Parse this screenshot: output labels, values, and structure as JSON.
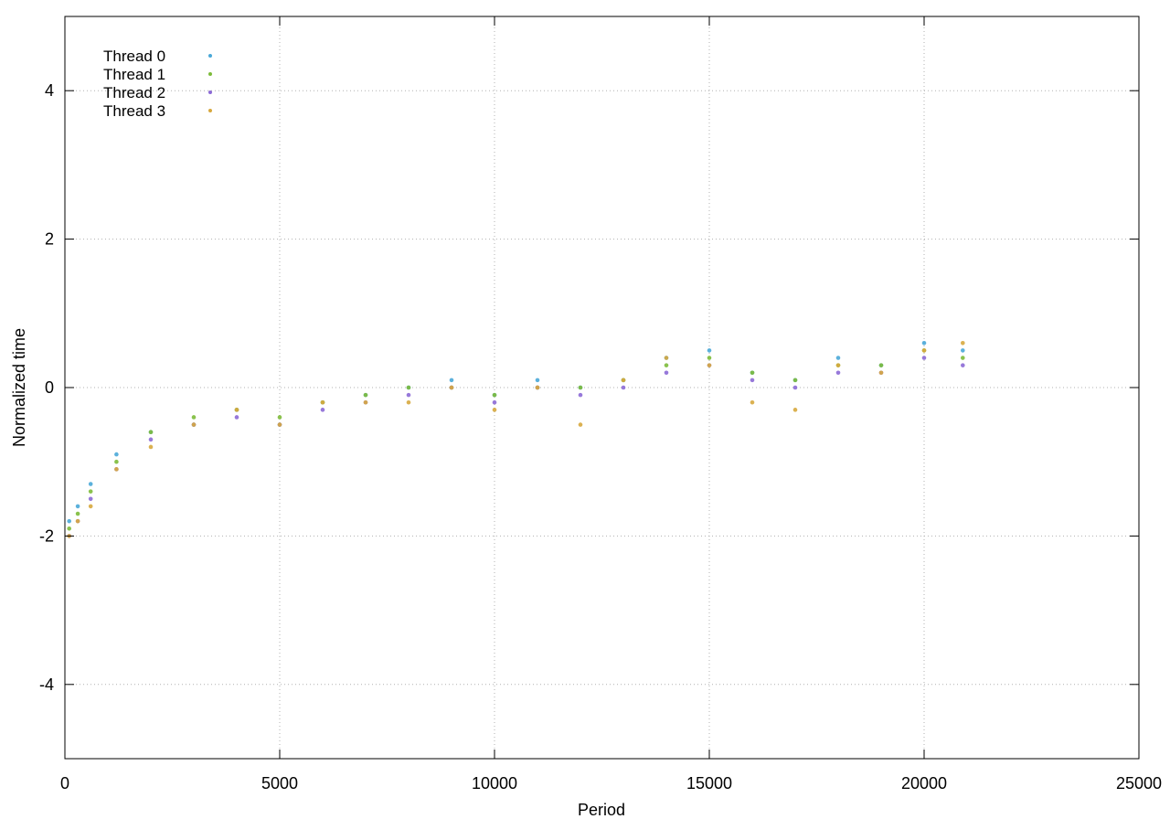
{
  "chart_data": {
    "type": "scatter",
    "title": "",
    "xlabel": "Period",
    "ylabel": "Normalized time",
    "xlim": [
      0,
      25000
    ],
    "ylim": [
      -5,
      5
    ],
    "x_ticks": [
      0,
      5000,
      10000,
      15000,
      20000,
      25000
    ],
    "y_ticks": [
      -4,
      -2,
      0,
      2,
      4
    ],
    "x_tick_labels": [
      "0",
      "5000",
      "10000",
      "15000",
      "20000",
      "25000"
    ],
    "y_tick_labels": [
      "-4",
      "-2",
      "0",
      "2",
      "4"
    ],
    "grid": true,
    "legend_position": "top-left",
    "series": [
      {
        "name": "Thread 0",
        "color": "#4aa8d8",
        "x": [
          100,
          300,
          600,
          1200,
          2000,
          3000,
          4000,
          5000,
          6000,
          7000,
          8000,
          9000,
          10000,
          11000,
          12000,
          13000,
          14000,
          15000,
          16000,
          17000,
          18000,
          19000,
          20000,
          20900
        ],
        "y": [
          -1.8,
          -1.6,
          -1.3,
          -0.9,
          -0.6,
          -0.5,
          -0.3,
          -0.5,
          -0.2,
          -0.1,
          0.0,
          0.1,
          -0.1,
          0.1,
          0.0,
          0.1,
          0.4,
          0.5,
          0.2,
          0.1,
          0.4,
          0.3,
          0.6,
          0.5
        ]
      },
      {
        "name": "Thread 1",
        "color": "#7dbb3a",
        "x": [
          100,
          300,
          600,
          1200,
          2000,
          3000,
          4000,
          5000,
          6000,
          7000,
          8000,
          9000,
          10000,
          11000,
          12000,
          13000,
          14000,
          15000,
          16000,
          17000,
          18000,
          19000,
          20000,
          20900
        ],
        "y": [
          -1.9,
          -1.7,
          -1.4,
          -1.0,
          -0.6,
          -0.4,
          -0.3,
          -0.4,
          -0.2,
          -0.1,
          0.0,
          0.0,
          -0.1,
          0.0,
          0.0,
          0.1,
          0.3,
          0.4,
          0.2,
          0.1,
          0.3,
          0.3,
          0.5,
          0.4
        ]
      },
      {
        "name": "Thread 2",
        "color": "#8c6ad6",
        "x": [
          100,
          300,
          600,
          1200,
          2000,
          3000,
          4000,
          5000,
          6000,
          7000,
          8000,
          9000,
          10000,
          11000,
          12000,
          13000,
          14000,
          15000,
          16000,
          17000,
          18000,
          19000,
          20000,
          20900
        ],
        "y": [
          -2.0,
          -1.8,
          -1.5,
          -1.1,
          -0.7,
          -0.5,
          -0.4,
          -0.5,
          -0.3,
          -0.2,
          -0.1,
          0.0,
          -0.2,
          0.0,
          -0.1,
          0.0,
          0.2,
          0.3,
          0.1,
          0.0,
          0.2,
          0.2,
          0.4,
          0.3
        ]
      },
      {
        "name": "Thread 3",
        "color": "#d7a83e",
        "x": [
          100,
          300,
          600,
          1200,
          2000,
          3000,
          4000,
          5000,
          6000,
          7000,
          8000,
          9000,
          10000,
          11000,
          12000,
          13000,
          14000,
          15000,
          16000,
          17000,
          18000,
          19000,
          20000,
          20900
        ],
        "y": [
          -2.0,
          -1.8,
          -1.6,
          -1.1,
          -0.8,
          -0.5,
          -0.3,
          -0.5,
          -0.2,
          -0.2,
          -0.2,
          0.0,
          -0.3,
          0.0,
          -0.5,
          0.1,
          0.4,
          0.3,
          -0.2,
          -0.3,
          0.3,
          0.2,
          0.5,
          0.6
        ]
      }
    ]
  }
}
